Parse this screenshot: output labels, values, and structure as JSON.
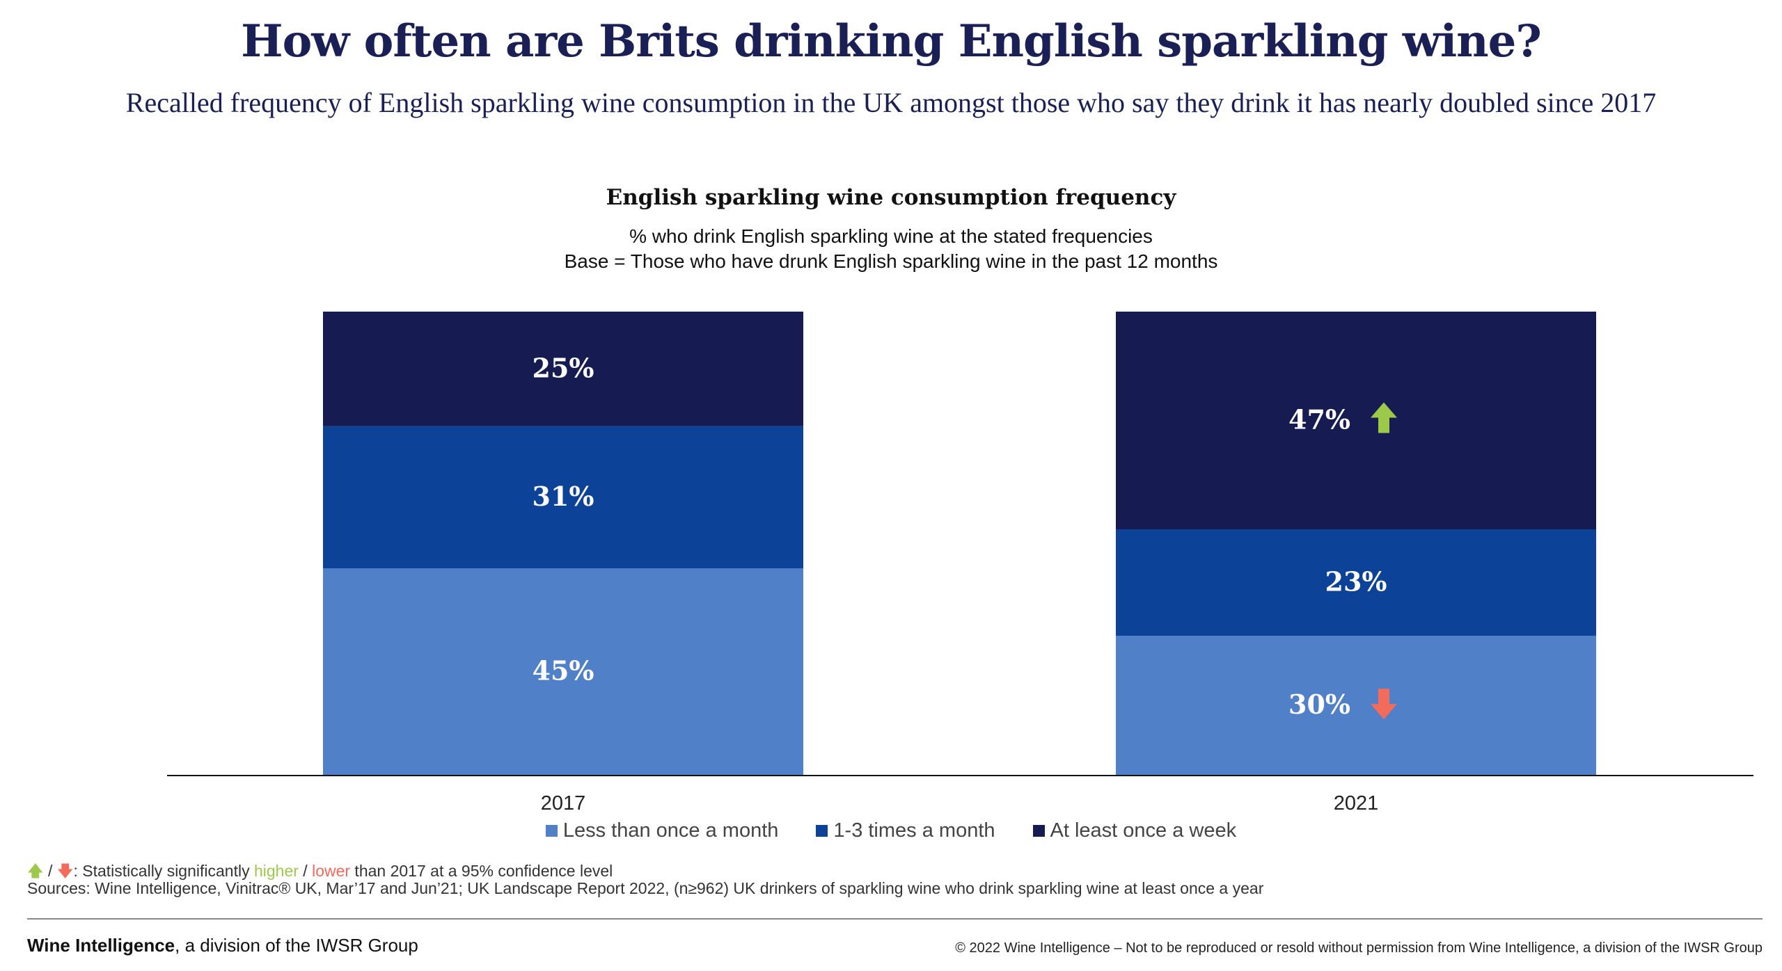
{
  "header": {
    "title": "How often are Brits drinking English sparkling wine?",
    "subtitle": "Recalled frequency of English sparkling wine consumption in the UK amongst those who say they drink it has nearly doubled since 2017"
  },
  "chart_data": {
    "type": "bar",
    "stacked": true,
    "title": "English sparkling wine consumption frequency",
    "subtitle_lines": [
      "% who drink English sparkling wine at the stated frequencies",
      "Base = Those who have drunk English sparkling wine in the past 12 months"
    ],
    "categories": [
      "2017",
      "2021"
    ],
    "series": [
      {
        "name": "Less than once a month",
        "color": "#5080c8",
        "values": [
          45,
          30
        ],
        "labels": [
          "45%",
          "30%"
        ],
        "significance": [
          null,
          "lower"
        ]
      },
      {
        "name": "1-3 times a month",
        "color": "#0c4298",
        "values": [
          31,
          23
        ],
        "labels": [
          "31%",
          "23%"
        ],
        "significance": [
          null,
          null
        ]
      },
      {
        "name": "At least once a week",
        "color": "#161c52",
        "values": [
          25,
          47
        ],
        "labels": [
          "25%",
          "47%"
        ],
        "significance": [
          null,
          "higher"
        ]
      }
    ],
    "legend_position": "bottom",
    "grid": false
  },
  "colors": {
    "higher": "#9dc94a",
    "lower": "#f26b5b"
  },
  "footnote": {
    "marker": " / ",
    "prefix": ": Statistically significantly ",
    "higher": "higher",
    "sep": " / ",
    "lower": "lower",
    "suffix": " than  2017 at a 95% confidence level",
    "sources": "Sources: Wine Intelligence, Vinitrac® UK, Mar’17 and Jun’21; UK Landscape Report 2022, (n≥962) UK drinkers of sparkling wine who drink sparkling wine at least once a year"
  },
  "footer": {
    "brand": "Wine Intelligence",
    "brand_suffix": ", a division of the IWSR Group",
    "copyright": "© 2022 Wine Intelligence – Not to be reproduced or resold without permission from Wine Intelligence, a division of the IWSR Group"
  }
}
